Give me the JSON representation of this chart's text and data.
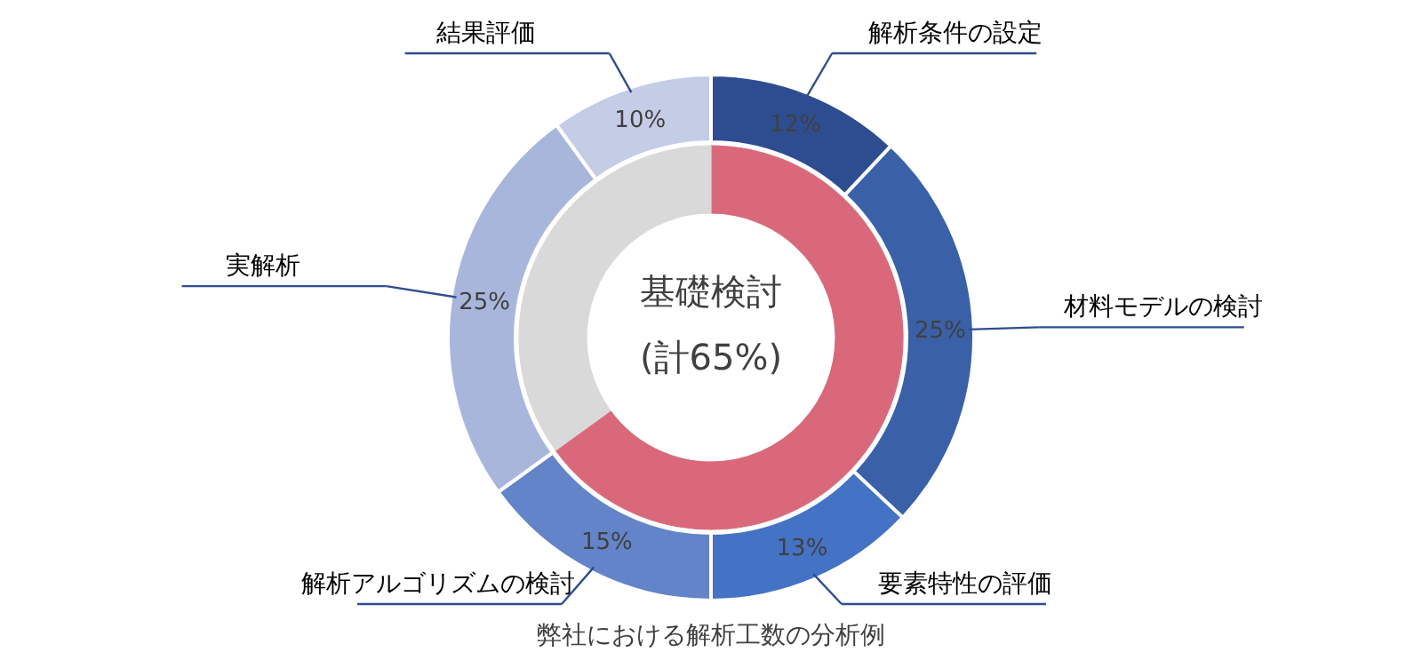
{
  "chart_data": {
    "type": "donut",
    "categories": [
      "解析条件の設定",
      "材料モデルの検討",
      "要素特性の評価",
      "解析アルゴリズムの検討",
      "実解析",
      "結果評価"
    ],
    "values": [
      12,
      25,
      13,
      15,
      25,
      10
    ],
    "colors": [
      "#2e4d91",
      "#3a60a8",
      "#4472c4",
      "#6384c8",
      "#a9b6dc",
      "#c5cce6"
    ],
    "value_labels": [
      "12%",
      "25%",
      "13%",
      "15%",
      "25%",
      "10%"
    ],
    "series": [
      {
        "values": [
          12,
          25,
          13,
          15,
          25,
          10
        ],
        "colors": [
          "#d9697a",
          "#d9697a",
          "#d9697a",
          "#d9697a",
          "#d9d9d9",
          "#d9d9d9"
        ]
      }
    ],
    "annotations": [
      "基礎検討",
      "(計65%)",
      "弊社における解析工数の分析例"
    ]
  }
}
